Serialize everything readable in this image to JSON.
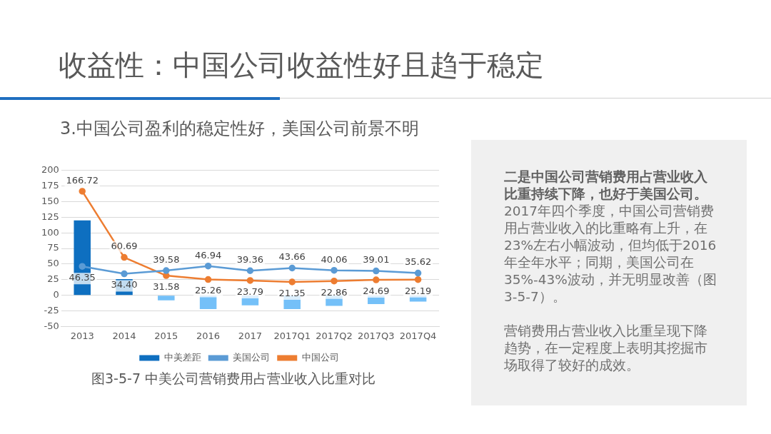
{
  "chart_data": {
    "type": "bar",
    "title": "收益性：中国公司收益性好且趋于稳定",
    "subtitle": "3.中国公司盈利的稳定性好，美国公司前景不明",
    "categories": [
      "2013",
      "2014",
      "2015",
      "2016",
      "2017",
      "2017Q1",
      "2017Q2",
      "2017Q3",
      "2017Q4"
    ],
    "series": [
      {
        "name": "中美差距",
        "color": "#0e6fc0",
        "colors": [
          "#0e6fc0",
          "#0e6fc0",
          "#74c0f8",
          "#74c0f8",
          "#74c0f8",
          "#74c0f8",
          "#74c0f8",
          "#74c0f8",
          "#74c0f8"
        ],
        "values": [
          120,
          26,
          -8,
          -22,
          -16,
          -22,
          -17,
          -14,
          -10
        ]
      },
      {
        "name": "美国公司",
        "type": "line",
        "color": "#5b9bd5",
        "values": [
          46.35,
          34.4,
          39.58,
          46.94,
          39.36,
          43.66,
          40.06,
          39.01,
          35.62
        ],
        "value_labels": [
          "46.35",
          "34.40",
          "39.58",
          "46.94",
          "39.36",
          "43.66",
          "40.06",
          "39.01",
          "35.62"
        ]
      },
      {
        "name": "中国公司",
        "type": "line",
        "color": "#ed7d31",
        "values": [
          166.72,
          60.69,
          31.58,
          25.26,
          23.79,
          21.35,
          22.86,
          24.69,
          25.19
        ],
        "value_labels": [
          "166.72",
          "60.69",
          "31.58",
          "25.26",
          "23.79",
          "21.35",
          "22.86",
          "24.69",
          "25.19"
        ]
      }
    ],
    "ylim": [
      -50,
      200
    ],
    "yticks": [
      -50,
      -25,
      0,
      25,
      50,
      75,
      100,
      125,
      150,
      175,
      200
    ],
    "grid": "y",
    "legend": "bottom",
    "marker": "circle",
    "annotations": [
      "图3-5-7 中美公司营销费用占营业收入比重对比",
      "二是中国公司营销费用占营业收入比重持续下降，也好于美国公司。",
      "2017年四个季度，中国公司营销费用占营业收入的比重略有上升，在23%左右小幅波动，但均低于2016年全年水平；同期，美国公司在35%-43%波动，并无明显改善（图3-5-7）。",
      "营销费用占营业收入比重呈现下降趋势，在一定程度上表明其挖掘市场取得了较好的成效。"
    ]
  }
}
